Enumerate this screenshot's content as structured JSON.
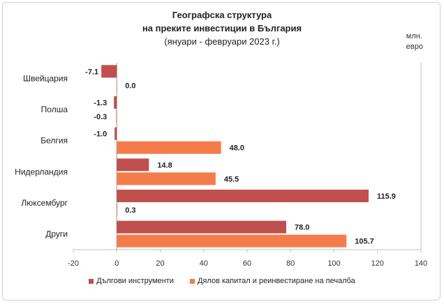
{
  "chart_data": {
    "type": "bar",
    "orientation": "horizontal",
    "title_lines": [
      "Географска структура",
      "на преките инвестиции в България",
      "(януари - февруари 2023 г.)"
    ],
    "unit_lines": [
      "млн.",
      "евро"
    ],
    "categories": [
      "Швейцария",
      "Полша",
      "Белгия",
      "Нидерландия",
      "Люксембург",
      "Други"
    ],
    "series": [
      {
        "name": "Дългови инструменти",
        "color": "#c0504d",
        "values": [
          -7.1,
          -1.3,
          -1.0,
          14.8,
          115.9,
          78.0
        ],
        "labels": [
          "-7.1",
          "-1.3",
          "-1.0",
          "14.8",
          "115.9",
          "78.0"
        ]
      },
      {
        "name": "Дялов капитал и реинвестиране на печалба",
        "color": "#f47c4b",
        "values": [
          0.0,
          -0.3,
          48.0,
          45.5,
          0.3,
          105.7
        ],
        "labels": [
          "0.0",
          "-0.3",
          "48.0",
          "45.5",
          "0.3",
          "105.7"
        ]
      }
    ],
    "xlim": [
      -20,
      140
    ],
    "xticks": [
      -20,
      0,
      20,
      40,
      60,
      80,
      100,
      120,
      140
    ],
    "grid": true,
    "legend_position": "bottom"
  }
}
